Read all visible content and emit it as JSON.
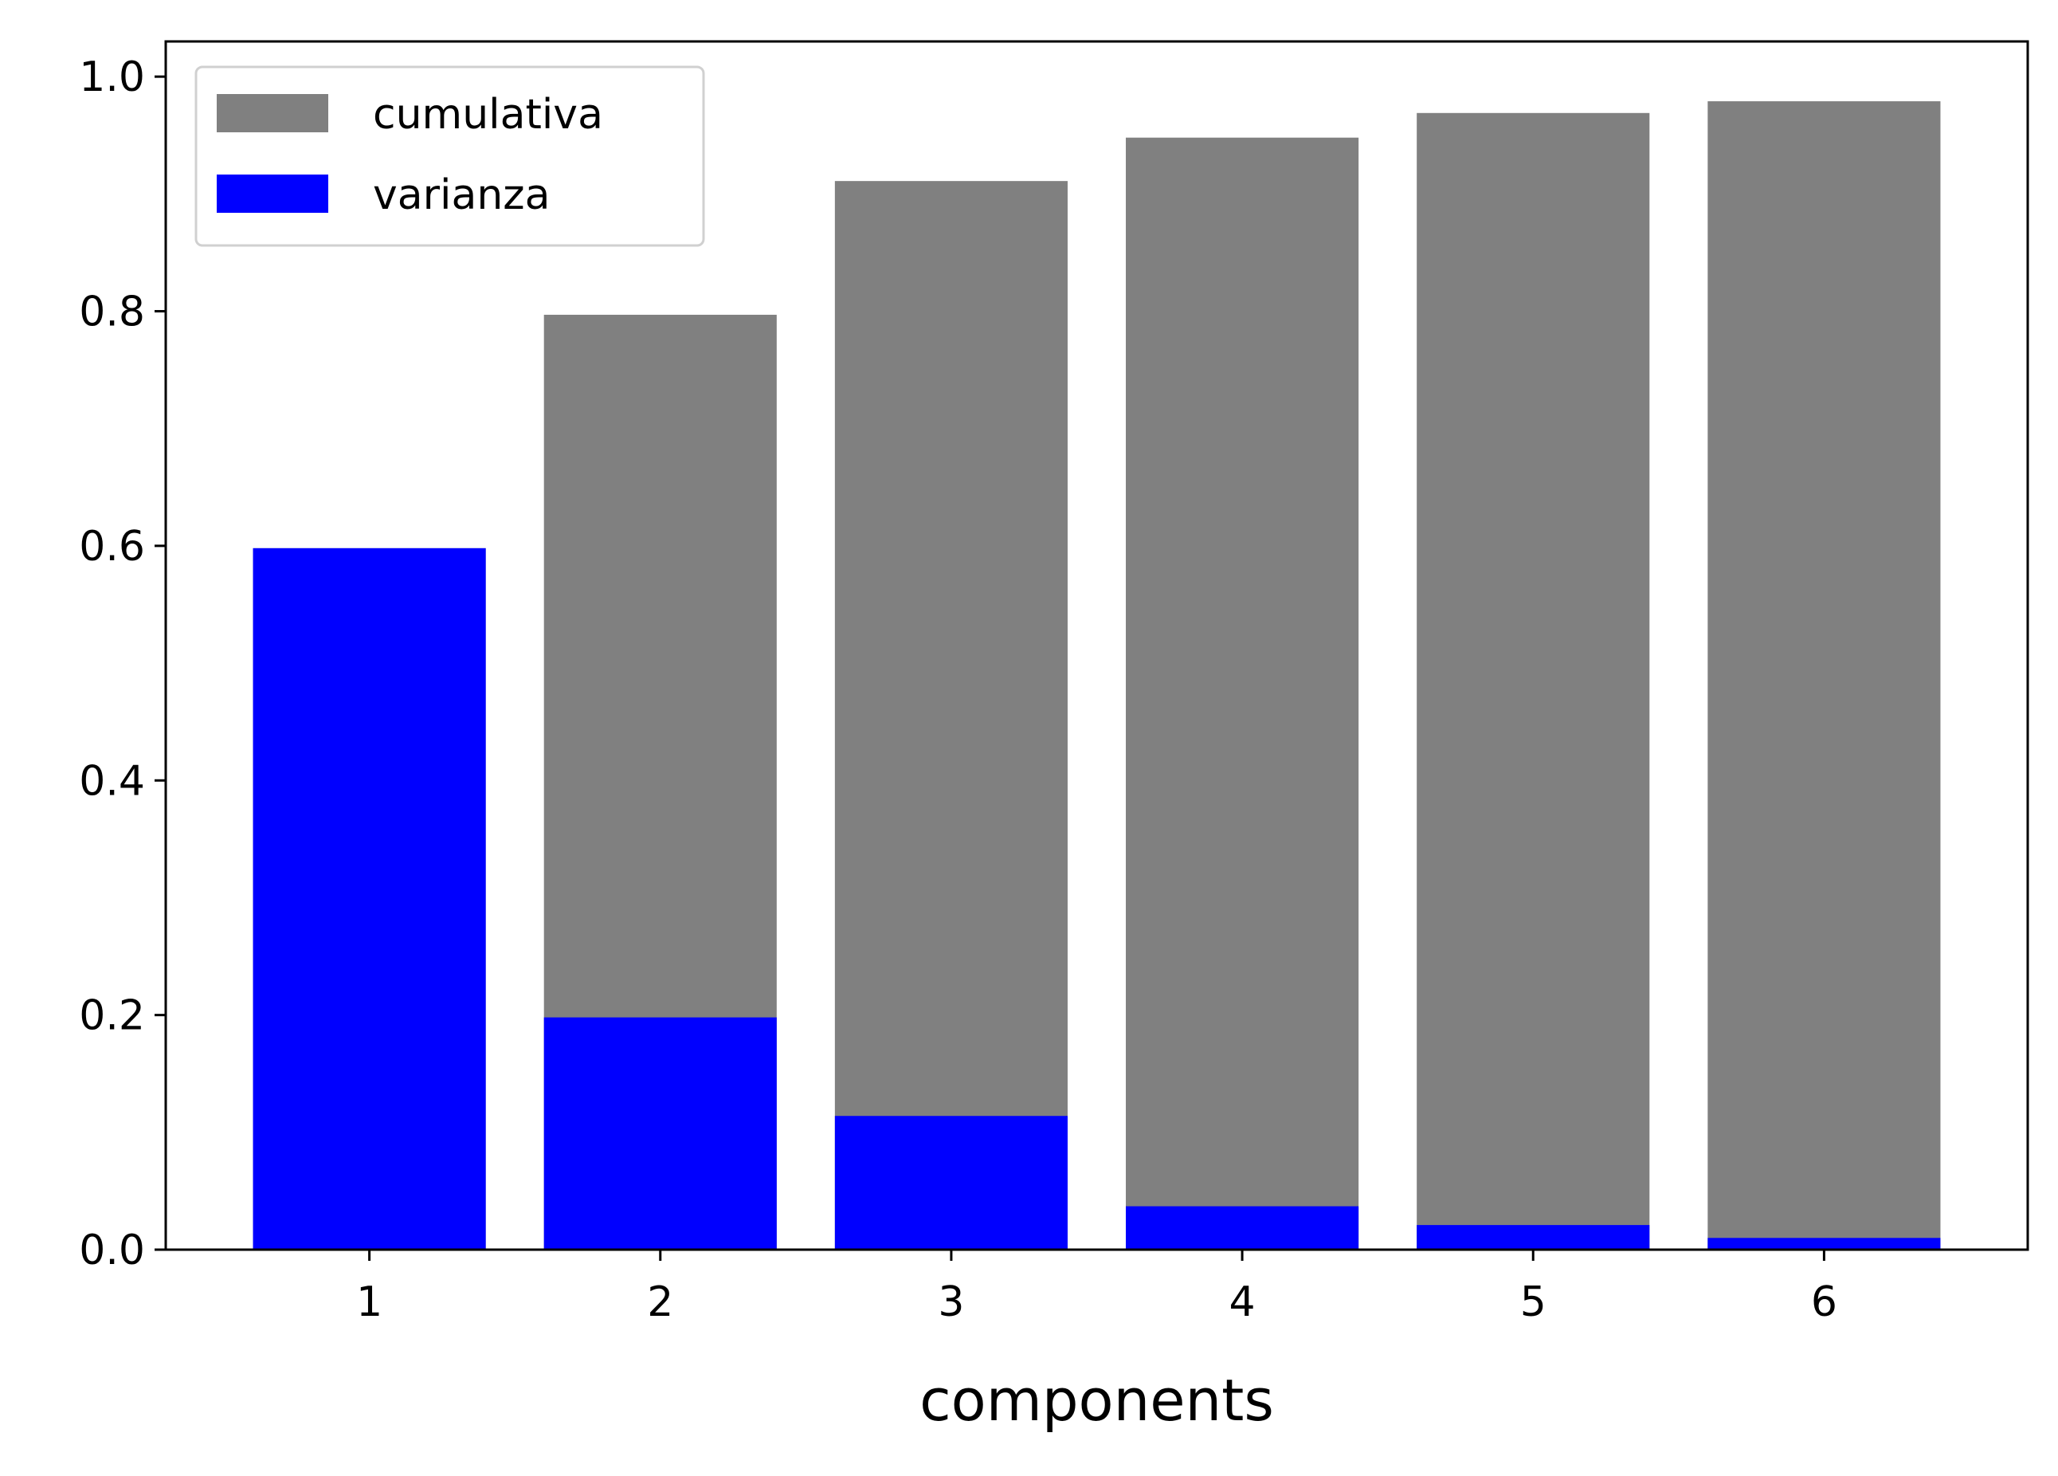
{
  "chart_data": {
    "type": "bar",
    "title": "",
    "xlabel": "components",
    "ylabel": "",
    "categories": [
      "1",
      "2",
      "3",
      "4",
      "5",
      "6"
    ],
    "ylim": [
      0,
      1.03
    ],
    "y_ticks": [
      "0.0",
      "0.2",
      "0.4",
      "0.6",
      "0.8",
      "1.0"
    ],
    "grid": false,
    "legend_position": "top-left",
    "series": [
      {
        "name": "cumulativa",
        "color": "#808080",
        "values": [
          0.598,
          0.797,
          0.911,
          0.948,
          0.969,
          0.979
        ]
      },
      {
        "name": "varianza",
        "color": "#0000ff",
        "values": [
          0.598,
          0.198,
          0.114,
          0.037,
          0.021,
          0.01
        ]
      }
    ]
  }
}
